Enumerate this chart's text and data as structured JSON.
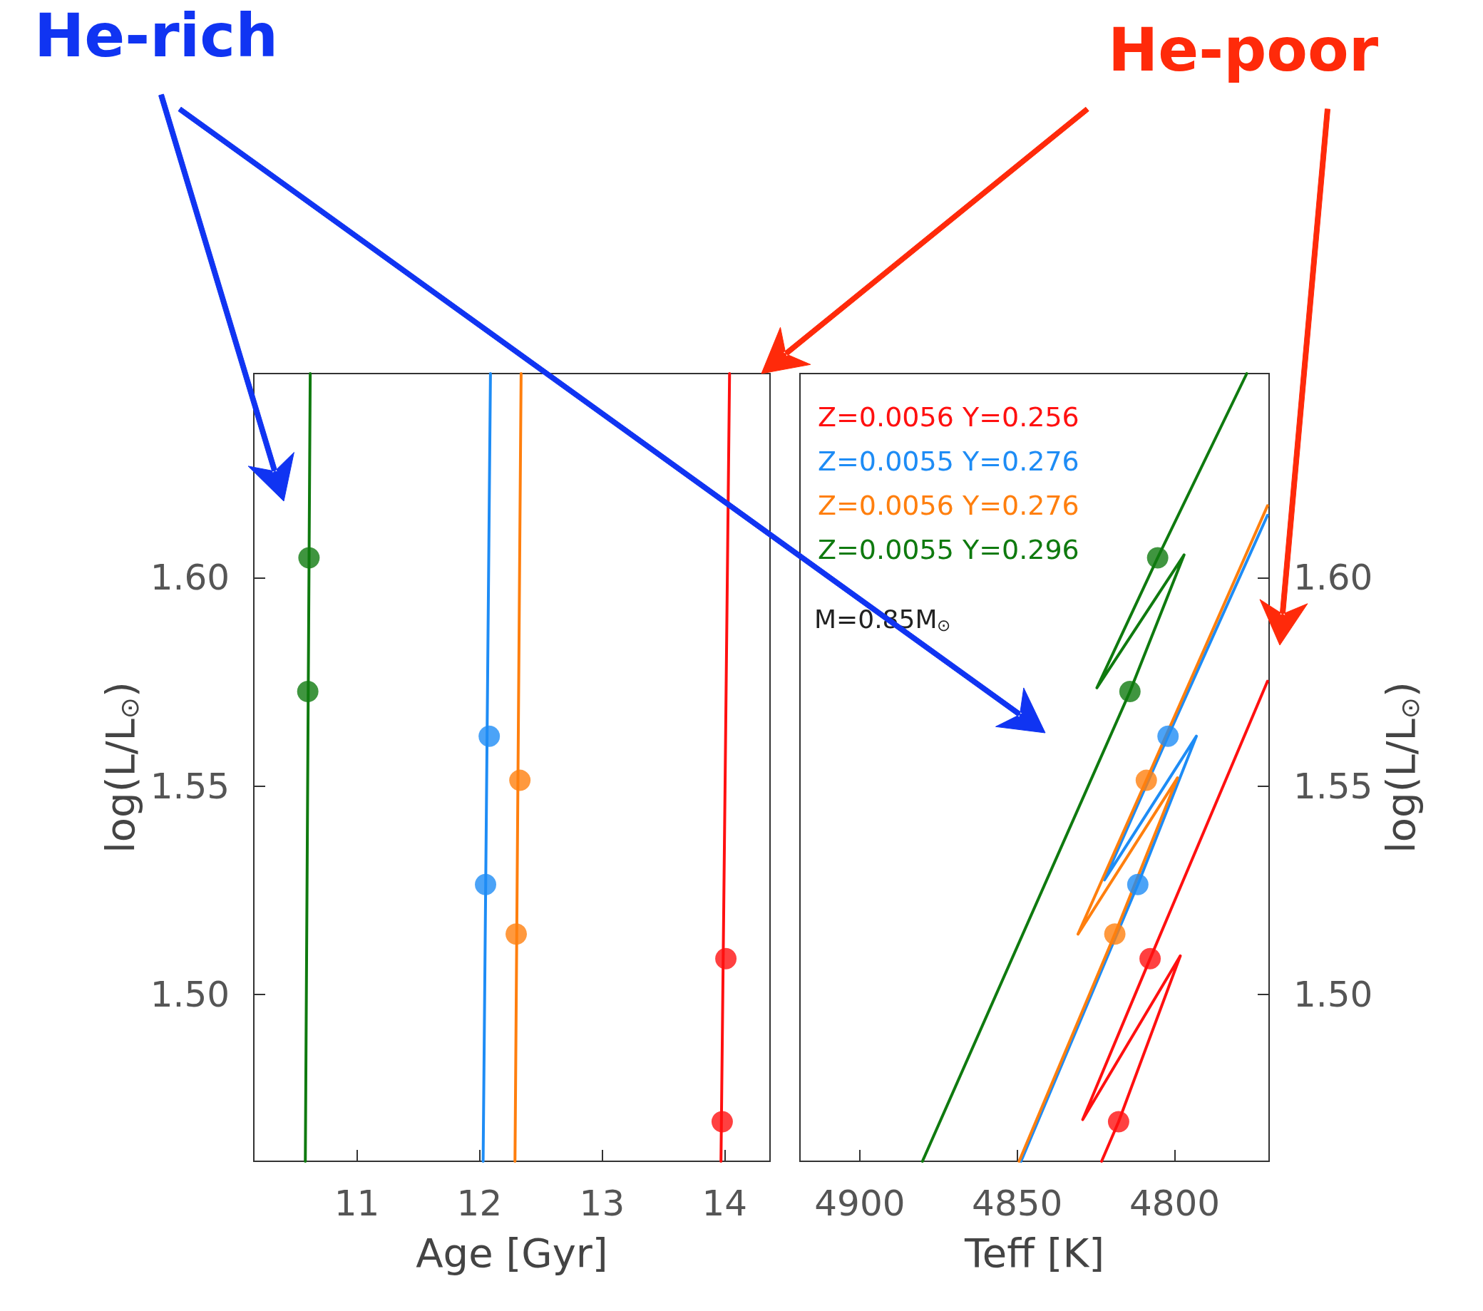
{
  "chart_data": [
    {
      "type": "line",
      "xlabel": "Age [Gyr]",
      "ylabel": "log(L/L$_{⊙}$)",
      "annotations": [
        "He-rich"
      ],
      "xlim": [
        10.16,
        14.37
      ],
      "xticks": [
        11,
        12,
        13,
        14
      ],
      "ylim": [
        1.46,
        1.649
      ],
      "yticks": [
        {
          "value": 1.5,
          "label": "1.50"
        },
        {
          "value": 1.55,
          "label": "1.55"
        },
        {
          "value": 1.6,
          "label": "1.60"
        }
      ],
      "grid": false,
      "marker": "none",
      "line_style": "solid",
      "series": [
        {
          "color": "#0f7a0f",
          "x": [
            10.58,
            10.62
          ],
          "values": [
            1.46,
            1.649
          ]
        },
        {
          "color": "#1e8cf5",
          "x": [
            12.03,
            12.09
          ],
          "values": [
            1.46,
            1.649
          ]
        },
        {
          "color": "#ff7f0e",
          "x": [
            12.29,
            12.34
          ],
          "values": [
            1.46,
            1.649
          ]
        },
        {
          "color": "#ff1010",
          "x": [
            13.97,
            14.04
          ],
          "values": [
            1.46,
            1.649
          ]
        },
        {
          "type": "scatter",
          "marker": "circle",
          "color": "#0f7a0f",
          "x": [
            10.61,
            10.6
          ],
          "values": [
            1.6048,
            1.5727
          ]
        },
        {
          "type": "scatter",
          "marker": "circle",
          "color": "#1e8cf5",
          "x": [
            12.08,
            12.05
          ],
          "values": [
            1.562,
            1.5264
          ]
        },
        {
          "type": "scatter",
          "marker": "circle",
          "color": "#ff7f0e",
          "x": [
            12.33,
            12.3
          ],
          "values": [
            1.5514,
            1.5145
          ]
        },
        {
          "type": "scatter",
          "marker": "circle",
          "color": "#ff1010",
          "x": [
            14.01,
            13.98
          ],
          "values": [
            1.5086,
            1.4695
          ]
        }
      ]
    },
    {
      "type": "line",
      "xlabel": "Teff [K]",
      "ylabel": "log(L/L$_{⊙}$)",
      "annotations": [
        "He-poor",
        "M=0.85M$_{⊙}$"
      ],
      "xlim": [
        4919,
        4770
      ],
      "xticks": [
        4900,
        4850,
        4800
      ],
      "ylim": [
        1.46,
        1.649
      ],
      "yticks": [
        {
          "value": 1.5,
          "label": "1.50"
        },
        {
          "value": 1.55,
          "label": "1.55"
        },
        {
          "value": 1.6,
          "label": "1.60"
        }
      ],
      "grid": false,
      "marker": "none",
      "line_style": "solid",
      "legend": "top left",
      "series": [
        {
          "name": "Z=0.0056 Y=0.256",
          "color": "#ff1010",
          "x": [
            4823.2,
            4817.8,
            4798.2,
            4829.2,
            4807.8,
            4770.5
          ],
          "values": [
            1.46,
            1.4695,
            1.5093,
            1.47,
            1.5086,
            1.5752
          ]
        },
        {
          "name": "Z=0.0055 Y=0.276",
          "color": "#1e8cf5",
          "x": [
            4848.8,
            4811.7,
            4793.1,
            4822.3,
            4802.1,
            4770.5
          ],
          "values": [
            1.46,
            1.5264,
            1.562,
            1.5275,
            1.562,
            1.615
          ]
        },
        {
          "name": "Z=0.0056 Y=0.276",
          "color": "#ff7f0e",
          "x": [
            4849.4,
            4819.0,
            4799.1,
            4830.7,
            4809.0,
            4770.5
          ],
          "values": [
            1.46,
            1.5145,
            1.552,
            1.5145,
            1.5514,
            1.6173
          ]
        },
        {
          "name": "Z=0.0055 Y=0.296",
          "color": "#0f7a0f",
          "x": [
            4880.1,
            4814.2,
            4797.0,
            4824.7,
            4805.4,
            4777.1
          ],
          "values": [
            1.46,
            1.5727,
            1.6055,
            1.5736,
            1.6048,
            1.649
          ]
        },
        {
          "type": "scatter",
          "marker": "circle",
          "color": "#ff1010",
          "x": [
            4807.8,
            4817.8
          ],
          "values": [
            1.5086,
            1.4695
          ]
        },
        {
          "type": "scatter",
          "marker": "circle",
          "color": "#1e8cf5",
          "x": [
            4802.1,
            4811.7
          ],
          "values": [
            1.562,
            1.5264
          ]
        },
        {
          "type": "scatter",
          "marker": "circle",
          "color": "#ff7f0e",
          "x": [
            4809.0,
            4819.0
          ],
          "values": [
            1.5514,
            1.5145
          ]
        },
        {
          "type": "scatter",
          "marker": "circle",
          "color": "#0f7a0f",
          "x": [
            4805.4,
            4814.2
          ],
          "values": [
            1.6048,
            1.5727
          ]
        }
      ]
    }
  ]
}
